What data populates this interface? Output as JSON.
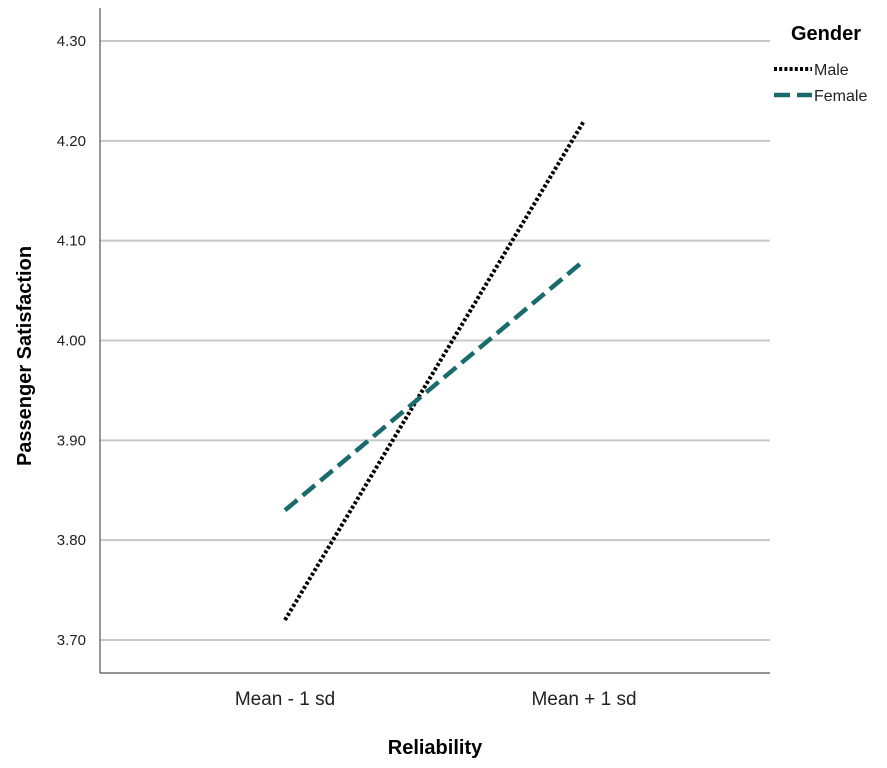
{
  "chart_data": {
    "type": "line",
    "categories": [
      "Mean - 1 sd",
      "Mean + 1 sd"
    ],
    "xlabel": "Reliability",
    "ylabel": "Passenger Satisfaction",
    "ylim": [
      3.67,
      4.34
    ],
    "yticks": [
      "3.70",
      "3.80",
      "3.90",
      "4.00",
      "4.10",
      "4.20",
      "4.30"
    ],
    "grid": true,
    "legend": {
      "title": "Gender",
      "placement": "top-right"
    },
    "series": [
      {
        "name": "Male",
        "values": [
          3.72,
          4.22
        ],
        "color": "#000000",
        "style": "dotted"
      },
      {
        "name": "Female",
        "values": [
          3.83,
          4.08
        ],
        "color": "#1a6b6b",
        "style": "dashed"
      }
    ]
  }
}
